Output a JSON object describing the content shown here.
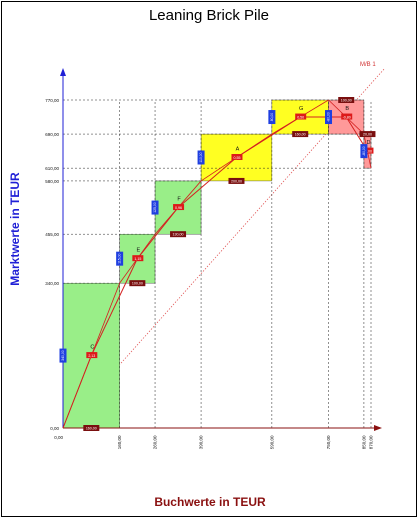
{
  "chart_data": {
    "type": "bar",
    "title": "Leaning Brick Pile",
    "xlabel": "Buchwerte in TEUR",
    "ylabel": "Marktwerte in TEUR",
    "xlim": [
      0,
      870
    ],
    "ylim": [
      0,
      800
    ],
    "x_ticks": [
      {
        "value": 0,
        "label": "0,00"
      },
      {
        "value": 160,
        "label": "160,00"
      },
      {
        "value": 260,
        "label": "260,00"
      },
      {
        "value": 390,
        "label": "390,00"
      },
      {
        "value": 590,
        "label": "590,00"
      },
      {
        "value": 750,
        "label": "750,00"
      },
      {
        "value": 850,
        "label": "850,00"
      },
      {
        "value": 870,
        "label": "870,00"
      }
    ],
    "y_ticks": [
      {
        "value": 0,
        "label": "0,00"
      },
      {
        "value": 340,
        "label": "340,00"
      },
      {
        "value": 455,
        "label": "455,00"
      },
      {
        "value": 580,
        "label": "580,00"
      },
      {
        "value": 610,
        "label": "610,00"
      },
      {
        "value": 690,
        "label": "690,00"
      },
      {
        "value": 770,
        "label": "770,00"
      }
    ],
    "diagonal_label": "M/B 1",
    "bricks": [
      {
        "name": "C",
        "x0": 0,
        "x1": 160,
        "y0": 0,
        "y1": 340,
        "color": "#99ee88",
        "height_label": "340,00",
        "width_label": "160,00",
        "ratio_label": "2,13"
      },
      {
        "name": "E",
        "x0": 160,
        "x1": 260,
        "y0": 340,
        "y1": 455,
        "color": "#99ee88",
        "height_label": "115,00",
        "width_label": "100,00",
        "ratio_label": "1,15"
      },
      {
        "name": "F",
        "x0": 260,
        "x1": 390,
        "y0": 455,
        "y1": 580,
        "color": "#99ee88",
        "height_label": "125,00",
        "width_label": "130,00",
        "ratio_label": "0,96"
      },
      {
        "name": "A",
        "x0": 390,
        "x1": 590,
        "y0": 580,
        "y1": 690,
        "color": "#ffff22",
        "height_label": "110,00",
        "width_label": "200,00",
        "ratio_label": "0,55"
      },
      {
        "name": "G",
        "x0": 590,
        "x1": 750,
        "y0": 690,
        "y1": 770,
        "color": "#ffff22",
        "height_label": "80,00",
        "width_label": "160,00",
        "ratio_label": "0,50"
      },
      {
        "name": "B",
        "x0": 750,
        "x1": 850,
        "y0": 770,
        "y1": 690,
        "color": "#ff9999",
        "height_label": "-80,00",
        "width_label": "100,00",
        "ratio_label": "-0,80"
      },
      {
        "name": "D",
        "x0": 850,
        "x1": 870,
        "y0": 690,
        "y1": 610,
        "color": "#ff9999",
        "height_label": "-80,00",
        "width_label": "20,00",
        "ratio_label": "-4,00"
      }
    ]
  }
}
